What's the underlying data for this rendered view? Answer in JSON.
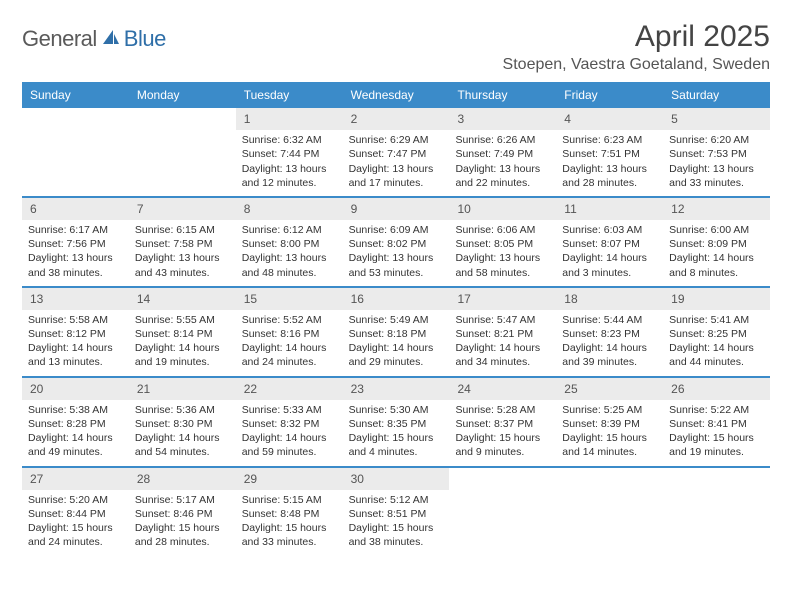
{
  "logo": {
    "part1": "General",
    "part2": "Blue"
  },
  "title": "April 2025",
  "location": "Stoepen, Vaestra Goetaland, Sweden",
  "colors": {
    "header_bg": "#3b8bc9",
    "header_text": "#ffffff",
    "daynum_bg": "#ebebeb",
    "row_divider": "#3b8bc9",
    "logo_gray": "#5a5a5a",
    "logo_blue": "#2f6fa8"
  },
  "weekdays": [
    "Sunday",
    "Monday",
    "Tuesday",
    "Wednesday",
    "Thursday",
    "Friday",
    "Saturday"
  ],
  "weeks": [
    [
      {
        "n": "",
        "empty": true
      },
      {
        "n": "",
        "empty": true
      },
      {
        "n": "1",
        "sr": "Sunrise: 6:32 AM",
        "ss": "Sunset: 7:44 PM",
        "dl": "Daylight: 13 hours and 12 minutes."
      },
      {
        "n": "2",
        "sr": "Sunrise: 6:29 AM",
        "ss": "Sunset: 7:47 PM",
        "dl": "Daylight: 13 hours and 17 minutes."
      },
      {
        "n": "3",
        "sr": "Sunrise: 6:26 AM",
        "ss": "Sunset: 7:49 PM",
        "dl": "Daylight: 13 hours and 22 minutes."
      },
      {
        "n": "4",
        "sr": "Sunrise: 6:23 AM",
        "ss": "Sunset: 7:51 PM",
        "dl": "Daylight: 13 hours and 28 minutes."
      },
      {
        "n": "5",
        "sr": "Sunrise: 6:20 AM",
        "ss": "Sunset: 7:53 PM",
        "dl": "Daylight: 13 hours and 33 minutes."
      }
    ],
    [
      {
        "n": "6",
        "sr": "Sunrise: 6:17 AM",
        "ss": "Sunset: 7:56 PM",
        "dl": "Daylight: 13 hours and 38 minutes."
      },
      {
        "n": "7",
        "sr": "Sunrise: 6:15 AM",
        "ss": "Sunset: 7:58 PM",
        "dl": "Daylight: 13 hours and 43 minutes."
      },
      {
        "n": "8",
        "sr": "Sunrise: 6:12 AM",
        "ss": "Sunset: 8:00 PM",
        "dl": "Daylight: 13 hours and 48 minutes."
      },
      {
        "n": "9",
        "sr": "Sunrise: 6:09 AM",
        "ss": "Sunset: 8:02 PM",
        "dl": "Daylight: 13 hours and 53 minutes."
      },
      {
        "n": "10",
        "sr": "Sunrise: 6:06 AM",
        "ss": "Sunset: 8:05 PM",
        "dl": "Daylight: 13 hours and 58 minutes."
      },
      {
        "n": "11",
        "sr": "Sunrise: 6:03 AM",
        "ss": "Sunset: 8:07 PM",
        "dl": "Daylight: 14 hours and 3 minutes."
      },
      {
        "n": "12",
        "sr": "Sunrise: 6:00 AM",
        "ss": "Sunset: 8:09 PM",
        "dl": "Daylight: 14 hours and 8 minutes."
      }
    ],
    [
      {
        "n": "13",
        "sr": "Sunrise: 5:58 AM",
        "ss": "Sunset: 8:12 PM",
        "dl": "Daylight: 14 hours and 13 minutes."
      },
      {
        "n": "14",
        "sr": "Sunrise: 5:55 AM",
        "ss": "Sunset: 8:14 PM",
        "dl": "Daylight: 14 hours and 19 minutes."
      },
      {
        "n": "15",
        "sr": "Sunrise: 5:52 AM",
        "ss": "Sunset: 8:16 PM",
        "dl": "Daylight: 14 hours and 24 minutes."
      },
      {
        "n": "16",
        "sr": "Sunrise: 5:49 AM",
        "ss": "Sunset: 8:18 PM",
        "dl": "Daylight: 14 hours and 29 minutes."
      },
      {
        "n": "17",
        "sr": "Sunrise: 5:47 AM",
        "ss": "Sunset: 8:21 PM",
        "dl": "Daylight: 14 hours and 34 minutes."
      },
      {
        "n": "18",
        "sr": "Sunrise: 5:44 AM",
        "ss": "Sunset: 8:23 PM",
        "dl": "Daylight: 14 hours and 39 minutes."
      },
      {
        "n": "19",
        "sr": "Sunrise: 5:41 AM",
        "ss": "Sunset: 8:25 PM",
        "dl": "Daylight: 14 hours and 44 minutes."
      }
    ],
    [
      {
        "n": "20",
        "sr": "Sunrise: 5:38 AM",
        "ss": "Sunset: 8:28 PM",
        "dl": "Daylight: 14 hours and 49 minutes."
      },
      {
        "n": "21",
        "sr": "Sunrise: 5:36 AM",
        "ss": "Sunset: 8:30 PM",
        "dl": "Daylight: 14 hours and 54 minutes."
      },
      {
        "n": "22",
        "sr": "Sunrise: 5:33 AM",
        "ss": "Sunset: 8:32 PM",
        "dl": "Daylight: 14 hours and 59 minutes."
      },
      {
        "n": "23",
        "sr": "Sunrise: 5:30 AM",
        "ss": "Sunset: 8:35 PM",
        "dl": "Daylight: 15 hours and 4 minutes."
      },
      {
        "n": "24",
        "sr": "Sunrise: 5:28 AM",
        "ss": "Sunset: 8:37 PM",
        "dl": "Daylight: 15 hours and 9 minutes."
      },
      {
        "n": "25",
        "sr": "Sunrise: 5:25 AM",
        "ss": "Sunset: 8:39 PM",
        "dl": "Daylight: 15 hours and 14 minutes."
      },
      {
        "n": "26",
        "sr": "Sunrise: 5:22 AM",
        "ss": "Sunset: 8:41 PM",
        "dl": "Daylight: 15 hours and 19 minutes."
      }
    ],
    [
      {
        "n": "27",
        "sr": "Sunrise: 5:20 AM",
        "ss": "Sunset: 8:44 PM",
        "dl": "Daylight: 15 hours and 24 minutes."
      },
      {
        "n": "28",
        "sr": "Sunrise: 5:17 AM",
        "ss": "Sunset: 8:46 PM",
        "dl": "Daylight: 15 hours and 28 minutes."
      },
      {
        "n": "29",
        "sr": "Sunrise: 5:15 AM",
        "ss": "Sunset: 8:48 PM",
        "dl": "Daylight: 15 hours and 33 minutes."
      },
      {
        "n": "30",
        "sr": "Sunrise: 5:12 AM",
        "ss": "Sunset: 8:51 PM",
        "dl": "Daylight: 15 hours and 38 minutes."
      },
      {
        "n": "",
        "empty": true
      },
      {
        "n": "",
        "empty": true
      },
      {
        "n": "",
        "empty": true
      }
    ]
  ]
}
